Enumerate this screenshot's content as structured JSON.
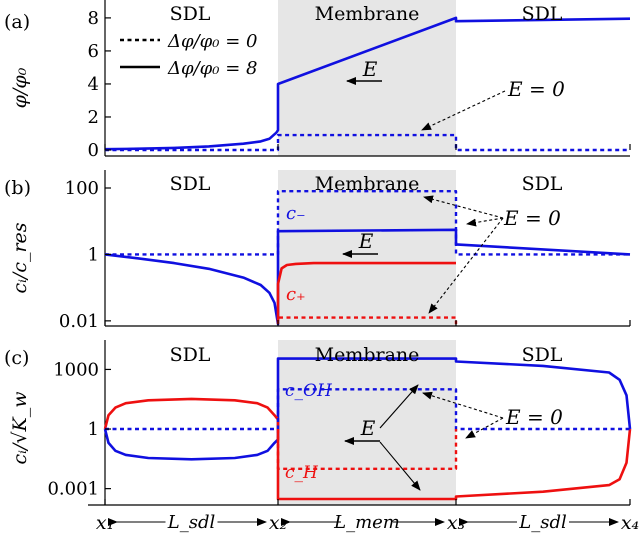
{
  "figure": {
    "legend": {
      "dashed_label": "Δφ/φ₀ = 0",
      "solid_label": "Δφ/φ₀ = 8"
    },
    "x_axis": {
      "tick_labels": [
        "x₁",
        "L_sdl",
        "x₂",
        "L_mem",
        "x₃",
        "L_sdl",
        "x₄"
      ]
    },
    "colors": {
      "blue": "#1010e0",
      "red": "#ee1010",
      "membrane_fill": "#e6e6e6",
      "axis": "#000000"
    }
  },
  "chart_data": [
    {
      "type": "line",
      "panel_label": "(a)",
      "ylabel": "φ/φ₀",
      "yscale": "linear",
      "ylim": [
        0,
        8.6
      ],
      "yticks": [
        0,
        2,
        4,
        6,
        8
      ],
      "ytick_labels": [
        "0",
        "2",
        "4",
        "6",
        "8"
      ],
      "xlim": [
        0,
        3
      ],
      "region_labels": [
        "SDL",
        "Membrane",
        "SDL"
      ],
      "annotations": [
        {
          "text": "E",
          "kind": "field-arrow"
        },
        {
          "text": "E = 0",
          "kind": "pointer"
        }
      ],
      "series": [
        {
          "name": "Δφ/φ₀ = 8",
          "color": "blue",
          "style": "solid",
          "x": [
            0,
            0.2,
            0.4,
            0.6,
            0.8,
            0.9,
            0.95,
            0.99,
            1.0,
            1.0,
            2.0,
            2.0,
            3.0
          ],
          "y": [
            0.05,
            0.08,
            0.13,
            0.22,
            0.38,
            0.52,
            0.68,
            1.05,
            1.2,
            4.0,
            8.0,
            7.8,
            7.95
          ]
        },
        {
          "name": "Δφ/φ₀ = 0",
          "color": "blue",
          "style": "dashed",
          "x": [
            0,
            1.0,
            1.0,
            2.0,
            2.0,
            3.0
          ],
          "y": [
            0,
            0,
            0.9,
            0.9,
            0,
            0
          ]
        }
      ]
    },
    {
      "type": "line",
      "panel_label": "(b)",
      "ylabel": "cᵢ/c_res",
      "yscale": "log",
      "ylim": [
        0.007,
        200
      ],
      "yticks": [
        0.01,
        1,
        100
      ],
      "ytick_labels": [
        "0.01",
        "1",
        "100"
      ],
      "xlim": [
        0,
        3
      ],
      "region_labels": [
        "SDL",
        "Membrane",
        "SDL"
      ],
      "annotations": [
        {
          "text": "E",
          "kind": "field-arrow"
        },
        {
          "text": "E = 0",
          "kind": "pointer"
        }
      ],
      "series": [
        {
          "name": "c₋",
          "color": "blue",
          "style": "solid",
          "x": [
            0,
            0.2,
            0.4,
            0.6,
            0.8,
            0.9,
            0.95,
            0.98,
            1.0,
            1.0,
            2.0,
            2.0,
            3.0
          ],
          "y": [
            1,
            0.75,
            0.55,
            0.37,
            0.2,
            0.12,
            0.07,
            0.035,
            0.008,
            5.0,
            5.5,
            2.0,
            1.0
          ]
        },
        {
          "name": "c₊",
          "color": "red",
          "style": "solid",
          "x": [
            1.0,
            1.0,
            1.02,
            1.05,
            1.1,
            1.2,
            1.5,
            2.0
          ],
          "y": [
            0.01,
            0.13,
            0.38,
            0.48,
            0.52,
            0.55,
            0.55,
            0.55
          ]
        },
        {
          "name": "c₋ (E = 0)",
          "color": "blue",
          "style": "dashed",
          "x": [
            0,
            1.0,
            1.0,
            2.0,
            2.0,
            3.0
          ],
          "y": [
            1,
            1,
            80,
            80,
            1,
            1
          ]
        },
        {
          "name": "c₊ (E = 0)",
          "color": "red",
          "style": "dashed",
          "x": [
            1.0,
            1.0,
            2.0,
            2.0
          ],
          "y": [
            0.008,
            0.0125,
            0.0125,
            0.008
          ]
        }
      ]
    },
    {
      "type": "line",
      "panel_label": "(c)",
      "ylabel": "cᵢ/√K_w",
      "yscale": "log",
      "ylim": [
        0.00015,
        12000
      ],
      "yticks": [
        0.001,
        1,
        1000
      ],
      "ytick_labels": [
        "0.001",
        "1",
        "1000"
      ],
      "xlim": [
        0,
        3
      ],
      "region_labels": [
        "SDL",
        "Membrane",
        "SDL"
      ],
      "annotations": [
        {
          "text": "E",
          "kind": "field-arrow"
        },
        {
          "text": "E = 0",
          "kind": "pointer"
        }
      ],
      "series": [
        {
          "name": "c_OH",
          "color": "blue",
          "style": "solid",
          "x": [
            0,
            0.02,
            0.06,
            0.12,
            0.25,
            0.5,
            0.75,
            0.88,
            0.94,
            0.98,
            1.0,
            1.0,
            2.0,
            2.0,
            2.5,
            2.88,
            2.94,
            2.98,
            3.0
          ],
          "y": [
            1,
            0.2,
            0.08,
            0.05,
            0.035,
            0.03,
            0.035,
            0.05,
            0.08,
            0.2,
            0.3,
            3500,
            3500,
            2500,
            1500,
            700,
            300,
            50,
            1
          ]
        },
        {
          "name": "c_H",
          "color": "red",
          "style": "solid",
          "x": [
            0,
            0.02,
            0.06,
            0.12,
            0.25,
            0.5,
            0.75,
            0.88,
            0.94,
            0.98,
            1.0,
            1.0,
            2.0,
            2.0,
            2.5,
            2.88,
            2.94,
            2.98,
            3.0
          ],
          "y": [
            1,
            5,
            12,
            20,
            28,
            33,
            28,
            20,
            12,
            5,
            3,
            0.0003,
            0.0003,
            0.0004,
            0.0007,
            0.0015,
            0.003,
            0.02,
            1
          ]
        },
        {
          "name": "c_OH (E = 0)",
          "color": "blue",
          "style": "dashed",
          "x": [
            0,
            1.0,
            1.0,
            2.0,
            2.0,
            3.0
          ],
          "y": [
            1,
            1,
            100,
            100,
            1,
            1
          ]
        },
        {
          "name": "c_H (E = 0)",
          "color": "red",
          "style": "dashed",
          "x": [
            1.0,
            1.0,
            2.0,
            2.0
          ],
          "y": [
            1,
            0.01,
            0.01,
            1
          ]
        }
      ]
    }
  ]
}
